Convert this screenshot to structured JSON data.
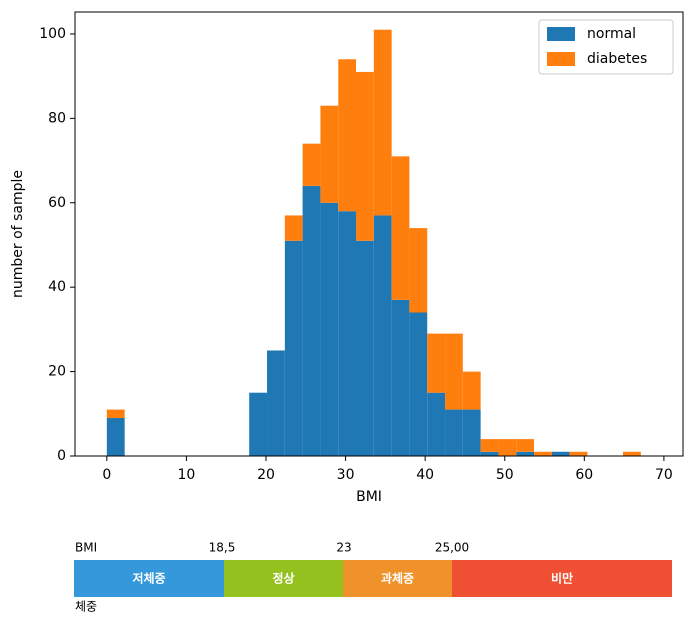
{
  "chart_data": {
    "type": "histogram",
    "xlabel": "BMI",
    "ylabel": "number of sample",
    "bins": [
      0,
      2.24,
      4.47,
      6.71,
      8.95,
      11.18,
      13.42,
      15.66,
      17.89,
      20.13,
      22.37,
      24.6,
      26.84,
      29.08,
      31.31,
      33.55,
      35.79,
      38.02,
      40.26,
      42.5,
      44.73,
      46.97,
      49.21,
      51.44,
      53.68,
      55.92,
      58.15,
      60.39,
      62.63,
      64.86,
      67.1
    ],
    "stacked": true,
    "series": [
      {
        "name": "normal",
        "color": "#1f77b4",
        "values": [
          9,
          0,
          0,
          0,
          0,
          0,
          0,
          0,
          15,
          25,
          51,
          64,
          60,
          58,
          51,
          57,
          37,
          34,
          15,
          11,
          11,
          1,
          0,
          1,
          0,
          1,
          0,
          0,
          0,
          0
        ]
      },
      {
        "name": "diabetes",
        "color": "#ff7f0e",
        "values": [
          2,
          0,
          0,
          0,
          0,
          0,
          0,
          0,
          0,
          0,
          6,
          10,
          23,
          36,
          40,
          44,
          34,
          20,
          14,
          18,
          9,
          3,
          4,
          3,
          1,
          0,
          1,
          0,
          0,
          1
        ]
      }
    ],
    "xlim": [
      -4,
      72.4
    ],
    "ylim": [
      0,
      105.2
    ],
    "xticks": [
      0,
      10,
      20,
      30,
      40,
      50,
      60,
      70
    ],
    "yticks": [
      0,
      20,
      40,
      60,
      80,
      100
    ],
    "legend": "upper right"
  },
  "bmi_scale": {
    "label": "BMI",
    "thresholds": [
      "18,5",
      "23",
      "25,00"
    ],
    "segments": [
      {
        "label": "저체중",
        "color": "#3498db"
      },
      {
        "label": "정상",
        "color": "#95c11f"
      },
      {
        "label": "과체중",
        "color": "#f0922b"
      },
      {
        "label": "비만",
        "color": "#ef5033"
      }
    ],
    "footer": "체중"
  }
}
